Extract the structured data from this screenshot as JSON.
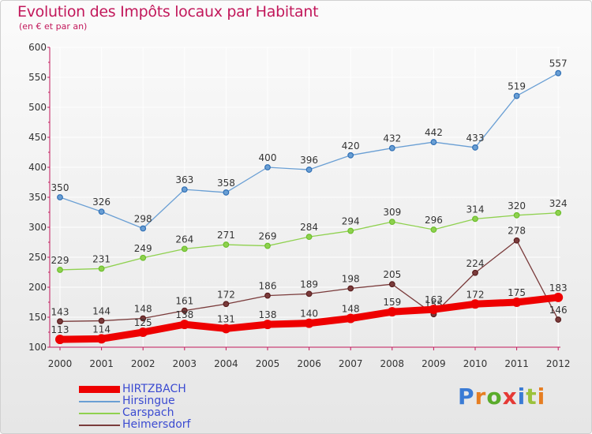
{
  "title": "Evolution des Impôts locaux par Habitant",
  "subtitle": "(en € et par an)",
  "brand": {
    "text": "Proxiti",
    "colors": [
      "#3a7bd5",
      "#e67e22",
      "#5aab2b",
      "#e53935",
      "#3a7bd5",
      "#9bc23c",
      "#e67e22"
    ]
  },
  "colors": {
    "axis": "#c2185b",
    "tick_text": "#333333",
    "grid": "#ffffff"
  },
  "chart_data": {
    "type": "line",
    "title": "Evolution des Impôts locaux par Habitant",
    "subtitle": "(en € et par an)",
    "xlabel": "",
    "ylabel": "",
    "ylim": [
      100,
      600
    ],
    "yticks": [
      100,
      150,
      200,
      250,
      300,
      350,
      400,
      450,
      500,
      550,
      600
    ],
    "grid": true,
    "legend": "bottom-left",
    "categories": [
      "2000",
      "2001",
      "2002",
      "2003",
      "2004",
      "2005",
      "2006",
      "2007",
      "2008",
      "2009",
      "2010",
      "2011",
      "2012"
    ],
    "series": [
      {
        "name": "Hirsingue",
        "color": "#6a9fd4",
        "marker": "#2f6fb5",
        "values": [
          350,
          326,
          298,
          363,
          358,
          400,
          396,
          420,
          432,
          442,
          433,
          519,
          557
        ]
      },
      {
        "name": "Carspach",
        "color": "#8fd14f",
        "marker": "#6cbf2c",
        "values": [
          229,
          231,
          249,
          264,
          271,
          269,
          284,
          294,
          309,
          296,
          314,
          320,
          324
        ]
      },
      {
        "name": "Heimersdorf",
        "color": "#7a3b3b",
        "marker": "#5a1f1f",
        "values": [
          143,
          144,
          148,
          161,
          172,
          186,
          189,
          198,
          205,
          155,
          224,
          278,
          146
        ]
      },
      {
        "name": "HIRTZBACH",
        "color": "#ee0000",
        "marker": "#ee0000",
        "thick": true,
        "values": [
          113,
          114,
          125,
          138,
          131,
          138,
          140,
          148,
          159,
          163,
          172,
          175,
          183
        ]
      }
    ]
  },
  "legend": [
    {
      "name": "HIRTZBACH",
      "color": "#ee0000",
      "thick": true
    },
    {
      "name": "Hirsingue",
      "color": "#6a9fd4"
    },
    {
      "name": "Carspach",
      "color": "#8fd14f"
    },
    {
      "name": "Heimersdorf",
      "color": "#7a3b3b"
    }
  ]
}
